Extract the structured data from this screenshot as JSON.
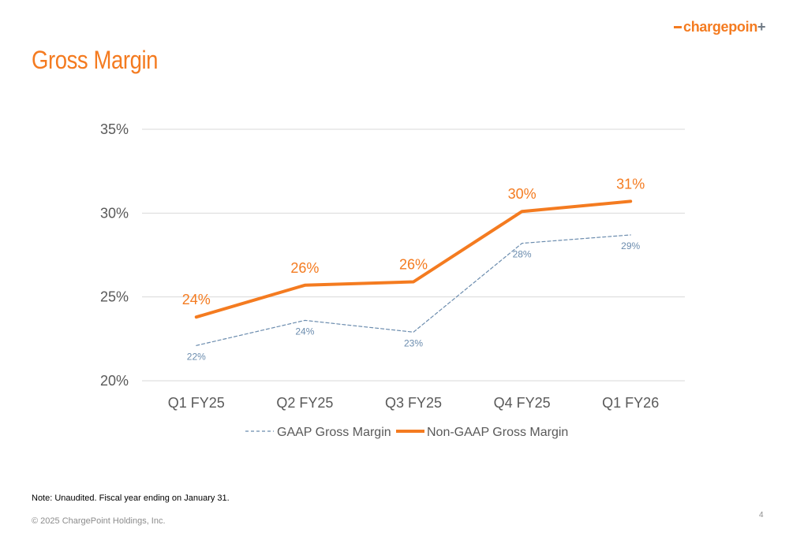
{
  "brand": {
    "logo_main": "chargepoin",
    "logo_end": "+",
    "logo_orange": "#f47b20",
    "logo_gray": "#6f7a85"
  },
  "slide": {
    "title": "Gross Margin",
    "title_color": "#f47b20",
    "note": "Note: Unaudited. Fiscal year ending on January 31.",
    "copyright": "© 2025 ChargePoint Holdings, Inc.",
    "page_number": "4"
  },
  "chart_data": {
    "type": "line",
    "title": "",
    "xlabel": "",
    "ylabel": "",
    "categories": [
      "Q1 FY25",
      "Q2 FY25",
      "Q3 FY25",
      "Q4 FY25",
      "Q1 FY26"
    ],
    "ylim": [
      0.2,
      0.35
    ],
    "yticks": [
      0.2,
      0.25,
      0.3,
      0.35
    ],
    "ytick_labels": [
      "20%",
      "25%",
      "30%",
      "35%"
    ],
    "grid": true,
    "legend_position": "bottom",
    "series": [
      {
        "name": "GAAP Gross Margin",
        "values": [
          0.221,
          0.236,
          0.229,
          0.282,
          0.287
        ],
        "labels": [
          "22%",
          "24%",
          "23%",
          "28%",
          "29%"
        ],
        "color": "#6b8cae",
        "style": "dashed"
      },
      {
        "name": "Non-GAAP Gross Margin",
        "values": [
          0.238,
          0.257,
          0.259,
          0.301,
          0.307
        ],
        "labels": [
          "24%",
          "26%",
          "26%",
          "30%",
          "31%"
        ],
        "color": "#f47b20",
        "style": "solid"
      }
    ]
  }
}
